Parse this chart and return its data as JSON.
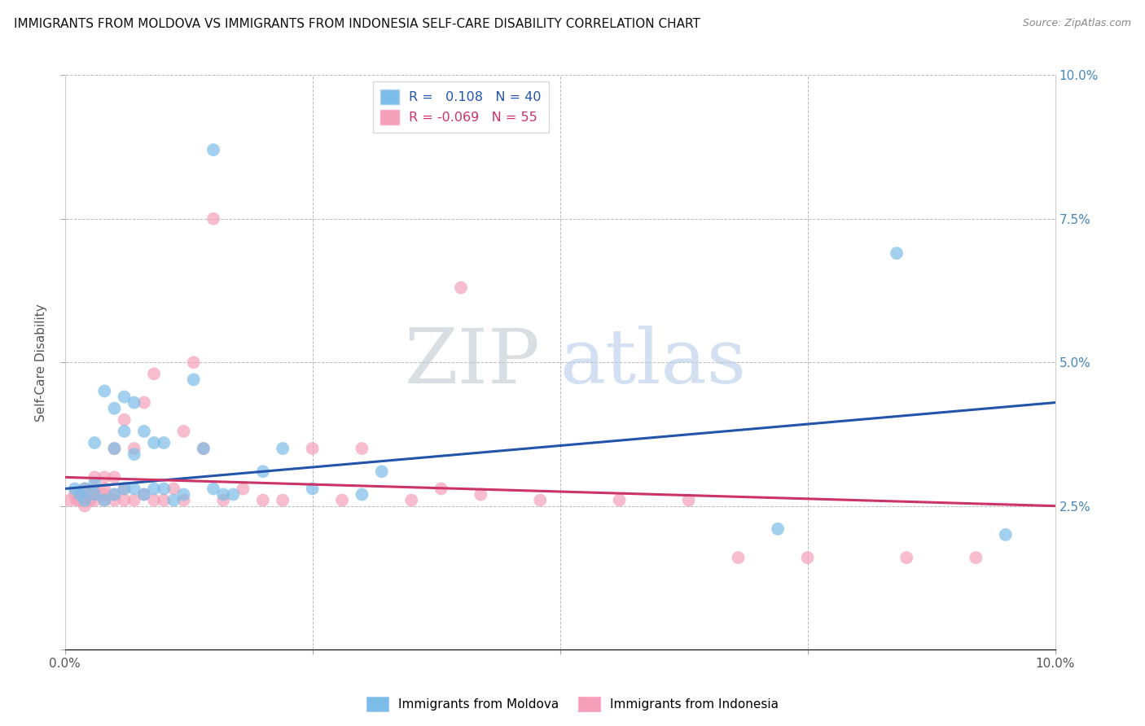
{
  "title": "IMMIGRANTS FROM MOLDOVA VS IMMIGRANTS FROM INDONESIA SELF-CARE DISABILITY CORRELATION CHART",
  "source": "Source: ZipAtlas.com",
  "ylabel": "Self-Care Disability",
  "xlim": [
    0.0,
    0.1
  ],
  "ylim": [
    0.0,
    0.1
  ],
  "watermark_zip": "ZIP",
  "watermark_atlas": "atlas",
  "moldova_color": "#7bbde8",
  "indonesia_color": "#f4a0b8",
  "moldova_R": 0.108,
  "moldova_N": 40,
  "indonesia_R": -0.069,
  "indonesia_N": 55,
  "moldova_line_color": "#2255aa",
  "indonesia_line_color": "#cc3366",
  "moldova_x": [
    0.001,
    0.0015,
    0.002,
    0.002,
    0.003,
    0.003,
    0.003,
    0.004,
    0.004,
    0.005,
    0.005,
    0.005,
    0.006,
    0.006,
    0.006,
    0.007,
    0.007,
    0.007,
    0.008,
    0.008,
    0.009,
    0.009,
    0.01,
    0.01,
    0.011,
    0.012,
    0.013,
    0.014,
    0.015,
    0.016,
    0.017,
    0.02,
    0.022,
    0.025,
    0.03,
    0.032,
    0.015,
    0.072,
    0.084,
    0.095
  ],
  "moldova_y": [
    0.028,
    0.027,
    0.026,
    0.028,
    0.027,
    0.029,
    0.036,
    0.026,
    0.045,
    0.027,
    0.035,
    0.042,
    0.028,
    0.038,
    0.044,
    0.028,
    0.034,
    0.043,
    0.027,
    0.038,
    0.028,
    0.036,
    0.028,
    0.036,
    0.026,
    0.027,
    0.047,
    0.035,
    0.028,
    0.027,
    0.027,
    0.031,
    0.035,
    0.028,
    0.027,
    0.031,
    0.087,
    0.021,
    0.069,
    0.02
  ],
  "indonesia_x": [
    0.0005,
    0.001,
    0.0012,
    0.0015,
    0.0018,
    0.002,
    0.002,
    0.0022,
    0.0025,
    0.003,
    0.003,
    0.003,
    0.003,
    0.004,
    0.004,
    0.004,
    0.004,
    0.005,
    0.005,
    0.005,
    0.005,
    0.006,
    0.006,
    0.006,
    0.007,
    0.007,
    0.008,
    0.008,
    0.009,
    0.009,
    0.01,
    0.011,
    0.012,
    0.012,
    0.013,
    0.014,
    0.015,
    0.016,
    0.018,
    0.02,
    0.022,
    0.025,
    0.028,
    0.03,
    0.035,
    0.038,
    0.04,
    0.042,
    0.048,
    0.056,
    0.063,
    0.068,
    0.075,
    0.085,
    0.092
  ],
  "indonesia_y": [
    0.026,
    0.027,
    0.026,
    0.026,
    0.027,
    0.025,
    0.028,
    0.027,
    0.026,
    0.026,
    0.027,
    0.028,
    0.03,
    0.026,
    0.028,
    0.027,
    0.03,
    0.026,
    0.027,
    0.03,
    0.035,
    0.026,
    0.028,
    0.04,
    0.026,
    0.035,
    0.027,
    0.043,
    0.026,
    0.048,
    0.026,
    0.028,
    0.026,
    0.038,
    0.05,
    0.035,
    0.075,
    0.026,
    0.028,
    0.026,
    0.026,
    0.035,
    0.026,
    0.035,
    0.026,
    0.028,
    0.063,
    0.027,
    0.026,
    0.026,
    0.026,
    0.016,
    0.016,
    0.016,
    0.016
  ]
}
